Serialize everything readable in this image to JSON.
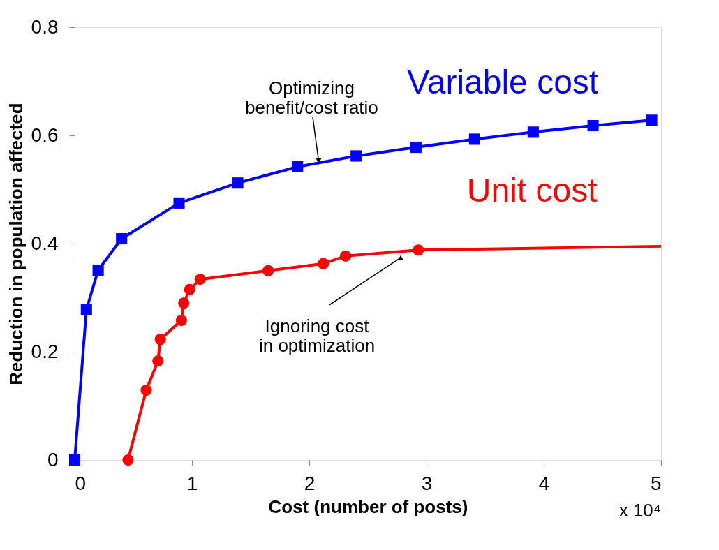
{
  "chart_data": {
    "type": "line",
    "xlabel": "Cost (number of posts)",
    "ylabel": "Reduction in population affected",
    "xlim": [
      0,
      5
    ],
    "xticks": [
      0,
      1,
      2,
      3,
      4,
      5
    ],
    "ylim": [
      0,
      0.8
    ],
    "yticks": [
      0,
      0.2,
      0.4,
      0.6,
      0.8
    ],
    "grid": false,
    "line_style": "solid",
    "series": [
      {
        "name": "Variable cost",
        "color": "#0000ff",
        "marker": "square",
        "x": [
          0,
          0.1,
          0.2,
          0.4,
          0.89,
          1.39,
          1.9,
          2.4,
          2.91,
          3.41,
          3.91,
          4.42,
          4.92
        ],
        "values": [
          0,
          0.278,
          0.351,
          0.409,
          0.475,
          0.512,
          0.542,
          0.562,
          0.578,
          0.593,
          0.606,
          0.618,
          0.628
        ]
      },
      {
        "name": "Unit cost",
        "color": "#ff0000",
        "marker": "circle",
        "x": [
          0.455,
          0.61,
          0.71,
          0.73,
          0.91,
          0.93,
          0.98,
          1.07,
          1.65,
          2.12,
          2.31,
          2.93
        ],
        "values": [
          0,
          0.129,
          0.183,
          0.223,
          0.258,
          0.29,
          0.315,
          0.334,
          0.35,
          0.363,
          0.377,
          0.388
        ]
      },
      {
        "color": "#ff0000",
        "marker": "none",
        "x": [
          2.93,
          5.0
        ],
        "values": [
          0.388,
          0.395
        ]
      }
    ],
    "annotations": [
      {
        "text": "Optimizing\nbenefit/cost ratio",
        "x": 2.08,
        "y": 0.553
      },
      {
        "text": "Ignoring cost\nin optimization",
        "x": 2.78,
        "y": 0.374
      },
      "x 10⁴"
    ]
  }
}
